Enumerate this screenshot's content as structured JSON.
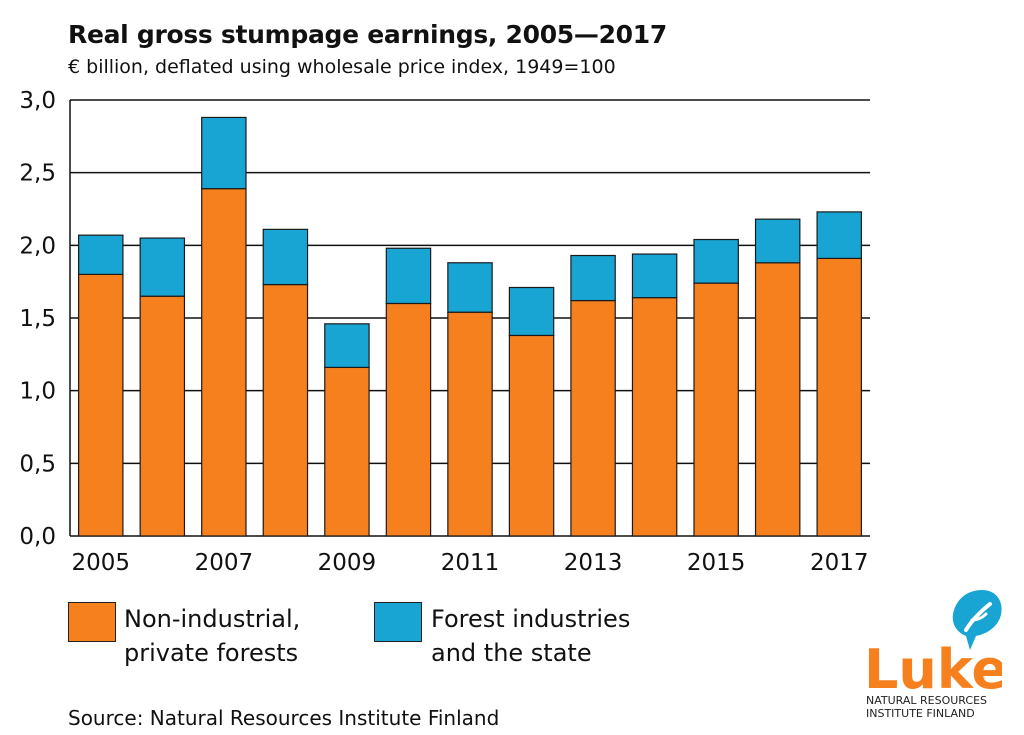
{
  "header": {
    "title": "Real gross stumpage earnings, 2005—2017",
    "subtitle": "€ billion, deflated using wholesale price index, 1949=100"
  },
  "chart_data": {
    "type": "bar",
    "stacked": true,
    "categories": [
      "2005",
      "2006",
      "2007",
      "2008",
      "2009",
      "2010",
      "2011",
      "2012",
      "2013",
      "2014",
      "2015",
      "2016",
      "2017"
    ],
    "x_tick_labels": [
      "2005",
      "",
      "2007",
      "",
      "2009",
      "",
      "2011",
      "",
      "2013",
      "",
      "2015",
      "",
      "2017"
    ],
    "y_tick_labels": [
      "0,0",
      "0,5",
      "1,0",
      "1,5",
      "2,0",
      "2,5",
      "3,0"
    ],
    "ylim": [
      0,
      3.0
    ],
    "ytick_step": 0.5,
    "grid": true,
    "series": [
      {
        "name": "Non-industrial, private forests",
        "legend_lines": [
          "Non-industrial,",
          "private forests"
        ],
        "color": "#f7801e",
        "values": [
          1.8,
          1.65,
          2.39,
          1.73,
          1.16,
          1.6,
          1.54,
          1.38,
          1.62,
          1.64,
          1.74,
          1.88,
          1.91
        ]
      },
      {
        "name": "Forest industries and the state",
        "legend_lines": [
          "Forest industries",
          "and the state"
        ],
        "color": "#19a5d4",
        "values": [
          0.27,
          0.4,
          0.49,
          0.38,
          0.3,
          0.38,
          0.34,
          0.33,
          0.31,
          0.3,
          0.3,
          0.3,
          0.32
        ]
      }
    ]
  },
  "source": "Source: Natural Resources Institute Finland",
  "logo": {
    "word": "Luke",
    "line1": "NATURAL RESOURCES",
    "line2": "INSTITUTE FINLAND",
    "color": "#f7801e",
    "leaf_color": "#19a5d4"
  }
}
